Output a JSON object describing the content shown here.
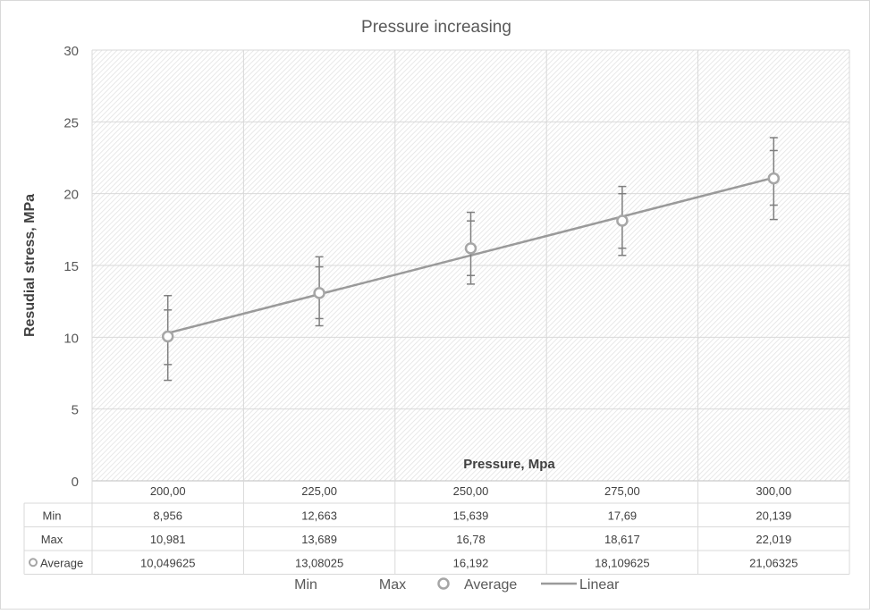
{
  "chart_data": {
    "type": "line",
    "title": "Pressure increasing",
    "xlabel": "Pressure, Mpa",
    "ylabel": "Resudial stress, MPa",
    "ylim": [
      0,
      30
    ],
    "yticks": [
      0,
      5,
      10,
      15,
      20,
      25,
      30
    ],
    "grid": true,
    "legend_position": "bottom",
    "categories": [
      "200,00",
      "225,00",
      "250,00",
      "275,00",
      "300,00"
    ],
    "series": [
      {
        "name": "Min",
        "values": [
          8.956,
          12.663,
          15.639,
          17.69,
          20.139
        ],
        "labels": [
          "8,956",
          "12,663",
          "15,639",
          "17,69",
          "20,139"
        ]
      },
      {
        "name": "Max",
        "values": [
          10.981,
          13.689,
          16.78,
          18.617,
          22.019
        ],
        "labels": [
          "10,981",
          "13,689",
          "16,78",
          "18,617",
          "22,019"
        ]
      },
      {
        "name": "Average",
        "values": [
          10.049625,
          13.08025,
          16.192,
          18.109625,
          21.06325
        ],
        "labels": [
          "10,049625",
          "13,08025",
          "16,192",
          "18,109625",
          "21,06325"
        ]
      }
    ],
    "trendline": {
      "name": "Linear"
    },
    "error_bars": {
      "outer_low": [
        7.0,
        10.8,
        13.7,
        15.7,
        18.2
      ],
      "outer_high": [
        12.9,
        15.6,
        18.7,
        20.5,
        23.9
      ],
      "inner_low": [
        8.1,
        11.3,
        14.3,
        16.2,
        19.2
      ],
      "inner_high": [
        11.9,
        14.9,
        18.1,
        20.0,
        23.0
      ]
    },
    "legend": [
      "Min",
      "Max",
      "Average",
      "Linear"
    ],
    "colors": {
      "line": "#9a9a9a",
      "marker": "#a6a6a6",
      "error_bar": "#7f7f7f",
      "grid": "#d9d9d9",
      "hatch": "#e0e0e0",
      "text": "#595959",
      "title": "#595959"
    }
  }
}
